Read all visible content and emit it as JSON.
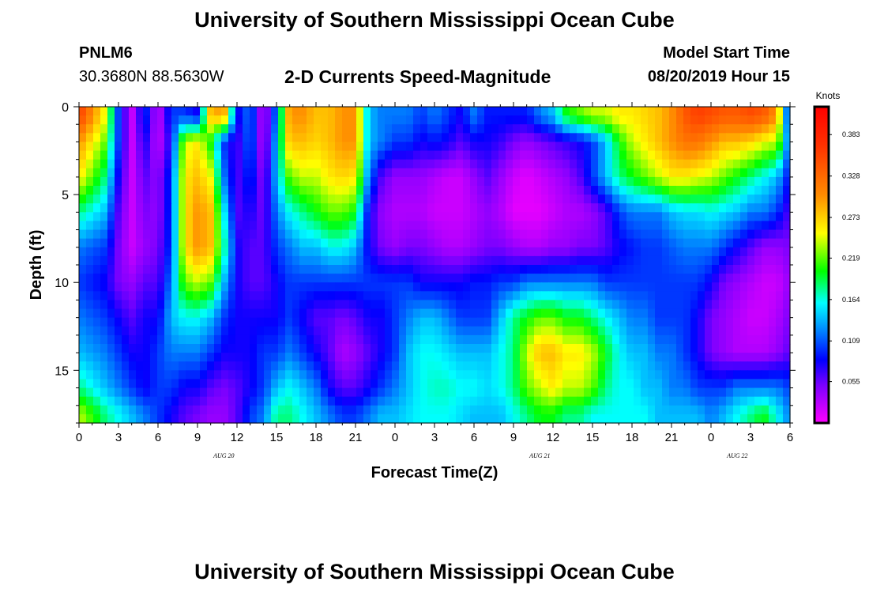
{
  "header": {
    "title": "University of Southern Mississippi Ocean Cube",
    "station_id": "PNLM6",
    "station_coords": "30.3680N 88.5630W",
    "chart_title": "2-D Currents Speed-Magnitude",
    "run_label": "Model Start Time",
    "run_time": "08/20/2019 Hour 15"
  },
  "footer": {
    "title": "University of Southern Mississippi Ocean Cube"
  },
  "chart_data": {
    "type": "heatmap",
    "xlabel": "Forecast Time(Z)",
    "ylabel": "Depth (ft)",
    "x_tick_labels": [
      "0",
      "3",
      "6",
      "9",
      "12",
      "15",
      "18",
      "21",
      "0",
      "3",
      "6",
      "9",
      "12",
      "15",
      "18",
      "21",
      "0",
      "3",
      "6"
    ],
    "x_date_labels": [
      {
        "label": "AUG 20",
        "at_hour": 11
      },
      {
        "label": "AUG 21",
        "at_hour": 35
      },
      {
        "label": "AUG 22",
        "at_hour": 50
      }
    ],
    "x_range_hours": [
      0,
      54
    ],
    "y_tick_labels": [
      "0",
      "5",
      "10",
      "15"
    ],
    "y_range_ft": [
      0,
      18
    ],
    "colorbar_unit": "Knots",
    "colorbar_ticks": [
      "0.383",
      "0.328",
      "0.273",
      "0.219",
      "0.164",
      "0.109",
      "0.055"
    ],
    "colorbar_tick_values": [
      0.383,
      0.328,
      0.273,
      0.219,
      0.164,
      0.109,
      0.055
    ],
    "colorbar_range": [
      0,
      0.42
    ],
    "depth_bands_ft": [
      0.5,
      2,
      4,
      6,
      8,
      10,
      12,
      14,
      16,
      17.5
    ],
    "time_hours": [
      0,
      2,
      3,
      4,
      5,
      6,
      7,
      8,
      9,
      10,
      11,
      12,
      13,
      14,
      15,
      16,
      17,
      18,
      19,
      20,
      21,
      22,
      23,
      24,
      25,
      26,
      27,
      28,
      29,
      30,
      31,
      32,
      33,
      34,
      35,
      36,
      37,
      38,
      39,
      40,
      41,
      42,
      43,
      44,
      45,
      46,
      47,
      48,
      49,
      50,
      51,
      52,
      53,
      54
    ],
    "values": [
      [
        0.36,
        0.25,
        0.1,
        0.02,
        0.1,
        0.02,
        0.1,
        0.1,
        0.08,
        0.28,
        0.3,
        0.08,
        0.12,
        0.02,
        0.12,
        0.3,
        0.3,
        0.28,
        0.28,
        0.3,
        0.3,
        0.14,
        0.12,
        0.12,
        0.12,
        0.1,
        0.12,
        0.1,
        0.08,
        0.12,
        0.09,
        0.09,
        0.09,
        0.09,
        0.12,
        0.14,
        0.2,
        0.22,
        0.24,
        0.24,
        0.26,
        0.26,
        0.27,
        0.28,
        0.3,
        0.34,
        0.36,
        0.35,
        0.34,
        0.34,
        0.35,
        0.34,
        0.3,
        0.06
      ],
      [
        0.3,
        0.22,
        0.1,
        0.02,
        0.08,
        0.02,
        0.08,
        0.24,
        0.26,
        0.2,
        0.1,
        0.06,
        0.12,
        0.02,
        0.14,
        0.28,
        0.28,
        0.27,
        0.28,
        0.3,
        0.3,
        0.14,
        0.12,
        0.1,
        0.1,
        0.08,
        0.09,
        0.08,
        0.06,
        0.08,
        0.08,
        0.07,
        0.05,
        0.04,
        0.05,
        0.06,
        0.07,
        0.08,
        0.1,
        0.14,
        0.2,
        0.24,
        0.26,
        0.28,
        0.3,
        0.32,
        0.32,
        0.3,
        0.28,
        0.28,
        0.27,
        0.25,
        0.24,
        0.1
      ],
      [
        0.26,
        0.18,
        0.08,
        0.02,
        0.06,
        0.04,
        0.1,
        0.26,
        0.28,
        0.25,
        0.12,
        0.06,
        0.1,
        0.04,
        0.14,
        0.22,
        0.24,
        0.24,
        0.26,
        0.27,
        0.26,
        0.12,
        0.06,
        0.04,
        0.04,
        0.04,
        0.03,
        0.02,
        0.02,
        0.04,
        0.06,
        0.04,
        0.02,
        0.01,
        0.02,
        0.03,
        0.04,
        0.06,
        0.1,
        0.14,
        0.18,
        0.2,
        0.22,
        0.24,
        0.26,
        0.26,
        0.25,
        0.24,
        0.22,
        0.2,
        0.18,
        0.16,
        0.14,
        0.08
      ],
      [
        0.18,
        0.14,
        0.06,
        0.02,
        0.05,
        0.04,
        0.1,
        0.26,
        0.3,
        0.28,
        0.16,
        0.06,
        0.08,
        0.05,
        0.12,
        0.16,
        0.18,
        0.2,
        0.22,
        0.22,
        0.2,
        0.08,
        0.04,
        0.03,
        0.03,
        0.03,
        0.02,
        0.02,
        0.02,
        0.03,
        0.04,
        0.03,
        0.01,
        0.01,
        0.01,
        0.02,
        0.03,
        0.03,
        0.04,
        0.06,
        0.1,
        0.12,
        0.12,
        0.12,
        0.14,
        0.15,
        0.15,
        0.16,
        0.15,
        0.14,
        0.12,
        0.12,
        0.1,
        0.06
      ],
      [
        0.12,
        0.1,
        0.05,
        0.02,
        0.04,
        0.05,
        0.1,
        0.26,
        0.3,
        0.28,
        0.18,
        0.08,
        0.06,
        0.06,
        0.1,
        0.12,
        0.14,
        0.14,
        0.16,
        0.16,
        0.14,
        0.08,
        0.05,
        0.04,
        0.05,
        0.05,
        0.04,
        0.03,
        0.03,
        0.04,
        0.05,
        0.05,
        0.04,
        0.03,
        0.03,
        0.04,
        0.04,
        0.05,
        0.05,
        0.06,
        0.08,
        0.09,
        0.1,
        0.1,
        0.11,
        0.12,
        0.12,
        0.12,
        0.1,
        0.08,
        0.06,
        0.04,
        0.04,
        0.05
      ],
      [
        0.1,
        0.08,
        0.05,
        0.04,
        0.06,
        0.06,
        0.12,
        0.22,
        0.24,
        0.22,
        0.14,
        0.08,
        0.06,
        0.06,
        0.08,
        0.1,
        0.1,
        0.1,
        0.1,
        0.1,
        0.1,
        0.1,
        0.1,
        0.1,
        0.1,
        0.08,
        0.08,
        0.08,
        0.08,
        0.09,
        0.09,
        0.1,
        0.1,
        0.12,
        0.12,
        0.12,
        0.12,
        0.12,
        0.12,
        0.1,
        0.1,
        0.1,
        0.1,
        0.1,
        0.1,
        0.1,
        0.1,
        0.08,
        0.05,
        0.04,
        0.03,
        0.02,
        0.02,
        0.04
      ],
      [
        0.12,
        0.1,
        0.08,
        0.06,
        0.08,
        0.08,
        0.14,
        0.16,
        0.16,
        0.14,
        0.1,
        0.08,
        0.08,
        0.08,
        0.08,
        0.1,
        0.08,
        0.06,
        0.06,
        0.05,
        0.06,
        0.08,
        0.08,
        0.1,
        0.12,
        0.14,
        0.14,
        0.12,
        0.1,
        0.1,
        0.1,
        0.14,
        0.18,
        0.2,
        0.22,
        0.22,
        0.2,
        0.2,
        0.18,
        0.16,
        0.14,
        0.12,
        0.12,
        0.1,
        0.1,
        0.1,
        0.08,
        0.05,
        0.04,
        0.03,
        0.02,
        0.02,
        0.03,
        0.05
      ],
      [
        0.14,
        0.12,
        0.1,
        0.08,
        0.08,
        0.1,
        0.12,
        0.12,
        0.12,
        0.1,
        0.08,
        0.08,
        0.08,
        0.1,
        0.1,
        0.12,
        0.1,
        0.08,
        0.06,
        0.03,
        0.04,
        0.06,
        0.08,
        0.1,
        0.14,
        0.16,
        0.16,
        0.15,
        0.14,
        0.14,
        0.14,
        0.16,
        0.18,
        0.24,
        0.28,
        0.28,
        0.26,
        0.26,
        0.24,
        0.2,
        0.16,
        0.14,
        0.14,
        0.12,
        0.12,
        0.1,
        0.08,
        0.05,
        0.04,
        0.03,
        0.03,
        0.03,
        0.04,
        0.06
      ],
      [
        0.18,
        0.14,
        0.12,
        0.1,
        0.08,
        0.1,
        0.1,
        0.08,
        0.08,
        0.06,
        0.05,
        0.06,
        0.08,
        0.1,
        0.14,
        0.16,
        0.14,
        0.12,
        0.08,
        0.06,
        0.06,
        0.08,
        0.1,
        0.12,
        0.14,
        0.16,
        0.17,
        0.17,
        0.16,
        0.16,
        0.15,
        0.16,
        0.18,
        0.22,
        0.24,
        0.26,
        0.24,
        0.24,
        0.22,
        0.18,
        0.16,
        0.16,
        0.14,
        0.14,
        0.12,
        0.12,
        0.1,
        0.1,
        0.1,
        0.12,
        0.12,
        0.12,
        0.12,
        0.1
      ],
      [
        0.24,
        0.18,
        0.16,
        0.14,
        0.12,
        0.1,
        0.08,
        0.06,
        0.05,
        0.04,
        0.04,
        0.06,
        0.1,
        0.12,
        0.18,
        0.18,
        0.16,
        0.14,
        0.12,
        0.1,
        0.1,
        0.12,
        0.14,
        0.14,
        0.15,
        0.16,
        0.16,
        0.16,
        0.15,
        0.14,
        0.14,
        0.14,
        0.16,
        0.18,
        0.2,
        0.2,
        0.18,
        0.18,
        0.16,
        0.16,
        0.16,
        0.16,
        0.16,
        0.14,
        0.14,
        0.14,
        0.14,
        0.12,
        0.14,
        0.16,
        0.18,
        0.2,
        0.16,
        0.12
      ]
    ]
  }
}
